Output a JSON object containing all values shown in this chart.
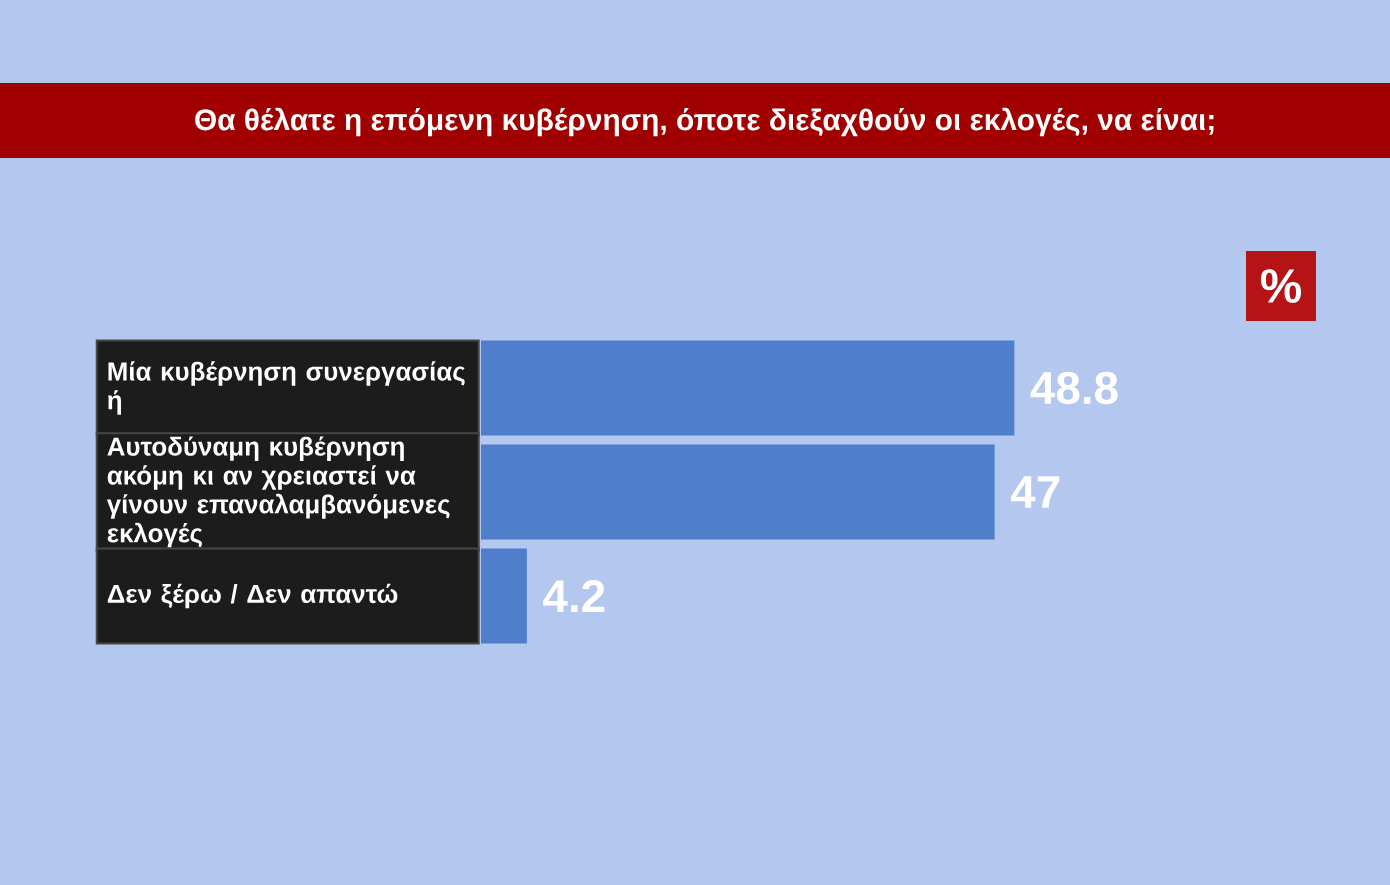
{
  "chart_data": {
    "type": "bar",
    "orientation": "horizontal",
    "title": "Θα θέλατε η επόμενη κυβέρνηση, όποτε διεξαχθούν οι εκλογές, να είναι;",
    "categories": [
      "Μία κυβέρνηση συνεργασίας ή",
      "Αυτοδύναμη κυβέρνηση ακόμη κι αν χρειαστεί να γίνουν επαναλαμβανόμενες εκλογές",
      "Δεν ξέρω / Δεν απαντώ"
    ],
    "values": [
      48.8,
      47,
      4.2
    ],
    "value_labels": [
      "48.8",
      "47",
      "4.2"
    ],
    "color": "#4f7fca",
    "annotations": [
      "%"
    ]
  }
}
